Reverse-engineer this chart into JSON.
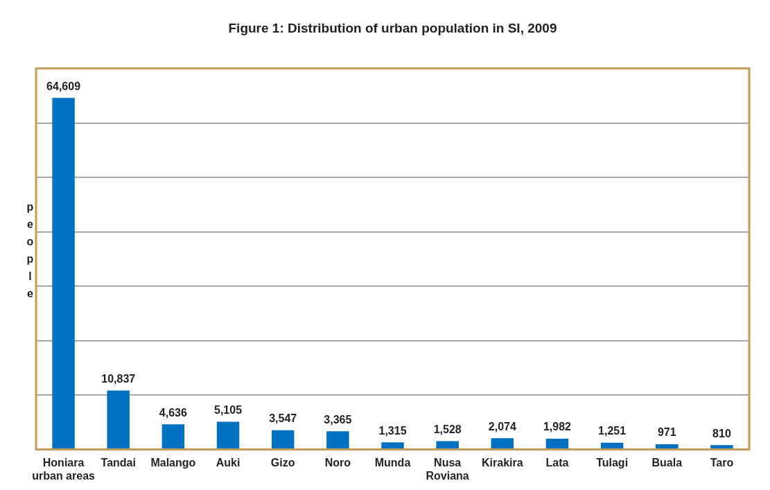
{
  "chart_data": {
    "type": "bar",
    "title": "Figure 1: Distribution of urban population in SI, 2009",
    "ylabel": "people",
    "categories": [
      "Honiara urban areas",
      "Tandai",
      "Malango",
      "Auki",
      "Gizo",
      "Noro",
      "Munda",
      "Nusa Roviana",
      "Kirakira",
      "Lata",
      "Tulagi",
      "Buala",
      "Taro"
    ],
    "values": [
      64609,
      10837,
      4636,
      5105,
      3547,
      3365,
      1315,
      1528,
      2074,
      1982,
      1251,
      971,
      810
    ],
    "color": "#0070c0",
    "value_labels": [
      "64,609",
      "10,837",
      "4,636",
      "5,105",
      "3,547",
      "3,365",
      "1,315",
      "1,528",
      "2,074",
      "1,982",
      "1,251",
      "971",
      "810"
    ],
    "ylim": [
      0,
      70000
    ],
    "yticks": [
      {
        "value": 0,
        "label": null
      },
      {
        "value": 10000,
        "label": null
      },
      {
        "value": 20000,
        "label": null
      },
      {
        "value": 30000,
        "label": null
      },
      {
        "value": 40000,
        "label": null
      },
      {
        "value": 50000,
        "label": null
      },
      {
        "value": 60000,
        "label": null
      },
      {
        "value": 70000,
        "label": null
      }
    ],
    "grid": "y",
    "tick_labels": "x",
    "legend": false
  }
}
